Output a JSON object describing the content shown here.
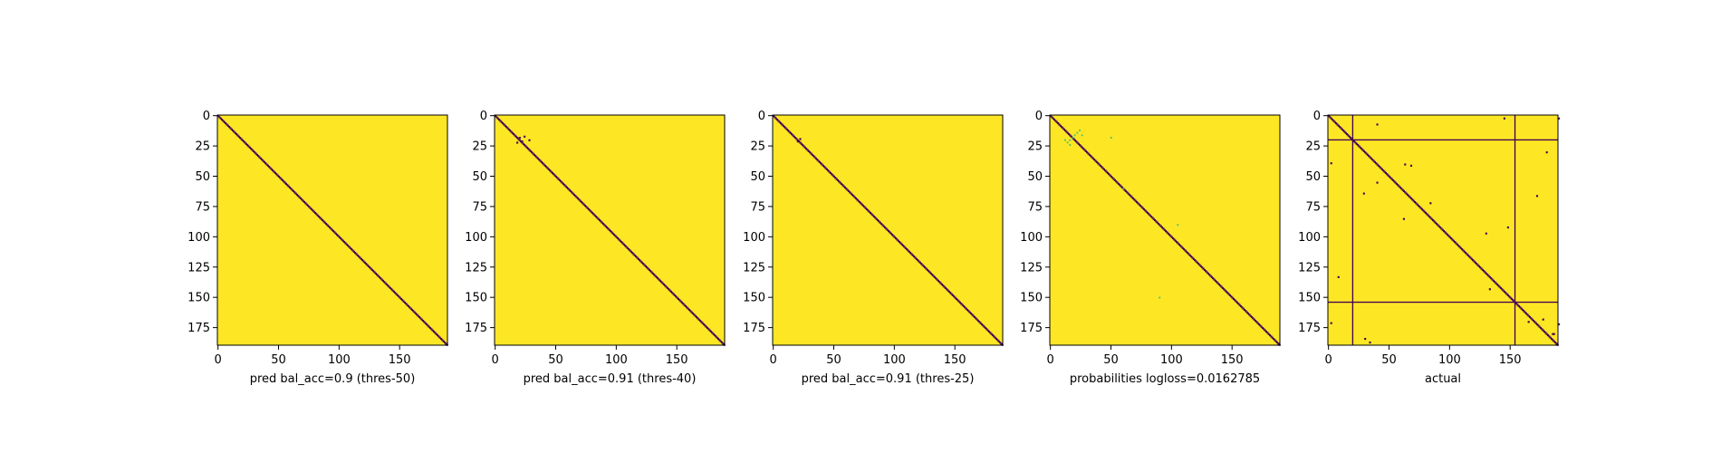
{
  "figure": {
    "background": "#ffffff",
    "colormap": "viridis"
  },
  "colors": {
    "high": "#fde725",
    "low": "#440154",
    "mid_green": "#35b779",
    "frame": "#000000"
  },
  "chart_data": [
    {
      "type": "heatmap",
      "xlabel": "pred bal_acc=0.9 (thres-50)",
      "matrix_size": 190,
      "xlim": [
        0,
        190
      ],
      "ylim": [
        0,
        190
      ],
      "x_ticks": [
        "0",
        "50",
        "100",
        "150"
      ],
      "y_ticks": [
        "0",
        "25",
        "50",
        "75",
        "100",
        "125",
        "150",
        "175"
      ],
      "background_value": 1,
      "diagonal_value": 0,
      "off_diagonal_low": [],
      "faint_points": [],
      "full_lines": []
    },
    {
      "type": "heatmap",
      "xlabel": "pred bal_acc=0.91 (thres-40)",
      "matrix_size": 190,
      "xlim": [
        0,
        190
      ],
      "ylim": [
        0,
        190
      ],
      "x_ticks": [
        "0",
        "50",
        "100",
        "150"
      ],
      "y_ticks": [
        "0",
        "25",
        "50",
        "75",
        "100",
        "125",
        "150",
        "175"
      ],
      "background_value": 1,
      "diagonal_value": 0,
      "off_diagonal_low": [
        [
          20,
          18
        ],
        [
          18,
          22
        ],
        [
          24,
          17
        ],
        [
          22,
          21
        ],
        [
          28,
          20
        ]
      ],
      "faint_points": [],
      "full_lines": []
    },
    {
      "type": "heatmap",
      "xlabel": "pred bal_acc=0.91 (thres-25)",
      "matrix_size": 190,
      "xlim": [
        0,
        190
      ],
      "ylim": [
        0,
        190
      ],
      "x_ticks": [
        "0",
        "50",
        "100",
        "150"
      ],
      "y_ticks": [
        "0",
        "25",
        "50",
        "75",
        "100",
        "125",
        "150",
        "175"
      ],
      "background_value": 1,
      "diagonal_value": 0,
      "off_diagonal_low": [
        [
          20,
          21
        ],
        [
          22,
          19
        ]
      ],
      "faint_points": [],
      "full_lines": []
    },
    {
      "type": "heatmap",
      "xlabel": "probabilities logloss=0.0162785",
      "matrix_size": 190,
      "xlim": [
        0,
        190
      ],
      "ylim": [
        0,
        190
      ],
      "x_ticks": [
        "0",
        "50",
        "100",
        "150"
      ],
      "y_ticks": [
        "0",
        "25",
        "50",
        "75",
        "100",
        "125",
        "150",
        "175"
      ],
      "background_value": 1,
      "diagonal_value": 0,
      "off_diagonal_low": [],
      "faint_points": [
        [
          14,
          22
        ],
        [
          16,
          20
        ],
        [
          18,
          18
        ],
        [
          20,
          16
        ],
        [
          22,
          14
        ],
        [
          24,
          12
        ],
        [
          16,
          24
        ],
        [
          26,
          16
        ],
        [
          12,
          20
        ],
        [
          50,
          18
        ],
        [
          60,
          60
        ],
        [
          105,
          90
        ],
        [
          90,
          150
        ]
      ],
      "full_lines": []
    },
    {
      "type": "heatmap",
      "xlabel": "actual",
      "matrix_size": 190,
      "xlim": [
        0,
        190
      ],
      "ylim": [
        0,
        190
      ],
      "x_ticks": [
        "0",
        "50",
        "100",
        "150"
      ],
      "y_ticks": [
        "0",
        "25",
        "50",
        "75",
        "100",
        "125",
        "150",
        "175"
      ],
      "background_value": 1,
      "diagonal_value": 0,
      "off_diagonal_low": [
        [
          2,
          39
        ],
        [
          40,
          7
        ],
        [
          29,
          64
        ],
        [
          40,
          55
        ],
        [
          63,
          40
        ],
        [
          68,
          41
        ],
        [
          84,
          72
        ],
        [
          62,
          85
        ],
        [
          130,
          97
        ],
        [
          148,
          92
        ],
        [
          133,
          143
        ],
        [
          165,
          170
        ],
        [
          177,
          168
        ],
        [
          185,
          180
        ],
        [
          30,
          184
        ],
        [
          34,
          187
        ],
        [
          180,
          30
        ],
        [
          186,
          180
        ],
        [
          2,
          171
        ],
        [
          8,
          133
        ],
        [
          145,
          2
        ],
        [
          190,
          2
        ],
        [
          190,
          172
        ],
        [
          172,
          66
        ]
      ],
      "faint_points": [],
      "full_lines": [
        20,
        154
      ]
    }
  ]
}
